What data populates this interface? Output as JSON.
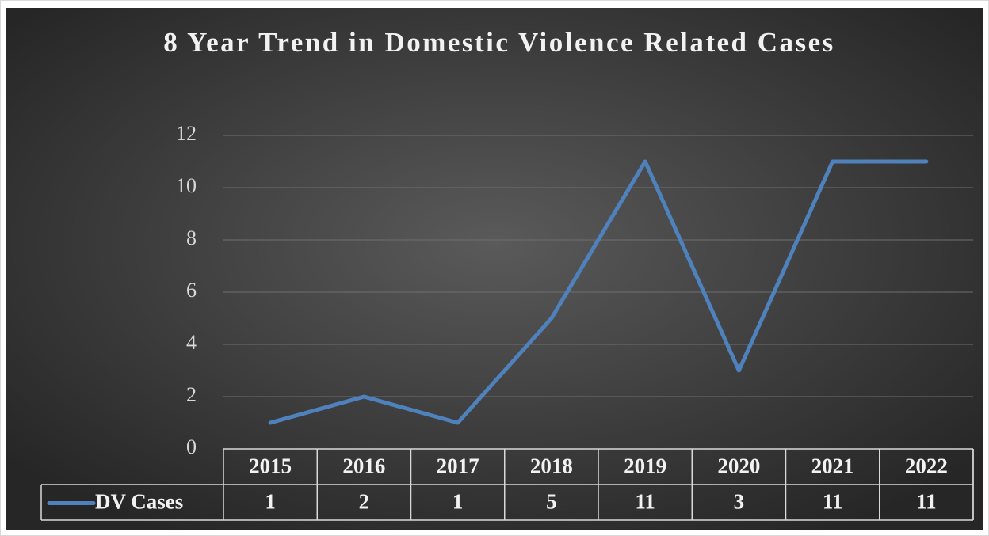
{
  "chart_data": {
    "type": "line",
    "title": "8 Year Trend in Domestic Violence Related Cases",
    "categories": [
      "2015",
      "2016",
      "2017",
      "2018",
      "2019",
      "2020",
      "2021",
      "2022"
    ],
    "series": [
      {
        "name": "DV Cases",
        "color": "#4f81bd",
        "values": [
          1,
          2,
          1,
          5,
          11,
          3,
          11,
          11
        ]
      }
    ],
    "ylim": [
      0,
      12
    ],
    "yticks": [
      0,
      2,
      4,
      6,
      8,
      10,
      12
    ],
    "grid": true
  }
}
